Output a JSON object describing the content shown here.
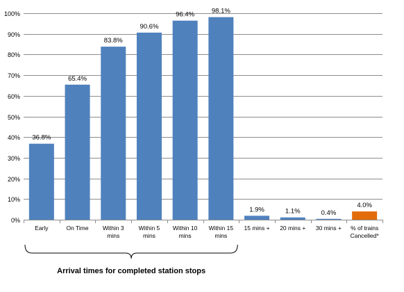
{
  "chart_data": {
    "type": "bar",
    "categories": [
      [
        "Early"
      ],
      [
        "On Time"
      ],
      [
        "Within 3",
        "mins"
      ],
      [
        "Within 5",
        "mins"
      ],
      [
        "Within 10",
        "mins"
      ],
      [
        "Within 15",
        "mins"
      ],
      [
        "15 mins +"
      ],
      [
        "20 mins +"
      ],
      [
        "30 mins +"
      ],
      [
        "% of trains",
        "Cancelled*"
      ]
    ],
    "values": [
      36.8,
      65.4,
      83.8,
      90.6,
      96.4,
      98.1,
      1.9,
      1.1,
      0.4,
      4.0
    ],
    "data_labels": [
      "36.8%",
      "65.4%",
      "83.8%",
      "90.6%",
      "96.4%",
      "98.1%",
      "1.9%",
      "1.1%",
      "0.4%",
      "4.0%"
    ],
    "bar_colors": [
      "#4F81BD",
      "#4F81BD",
      "#4F81BD",
      "#4F81BD",
      "#4F81BD",
      "#4F81BD",
      "#4F81BD",
      "#4F81BD",
      "#4F81BD",
      "#E36C0A"
    ],
    "ylim": [
      0,
      100
    ],
    "yticks": [
      0,
      10,
      20,
      30,
      40,
      50,
      60,
      70,
      80,
      90,
      100
    ],
    "ytick_labels": [
      "0%",
      "10%",
      "20%",
      "30%",
      "40%",
      "50%",
      "60%",
      "70%",
      "80%",
      "90%",
      "100%"
    ],
    "grid": true,
    "legend": "none",
    "group_label": "Arrival times for completed station stops",
    "gridline_color": "#8C8C8C"
  }
}
